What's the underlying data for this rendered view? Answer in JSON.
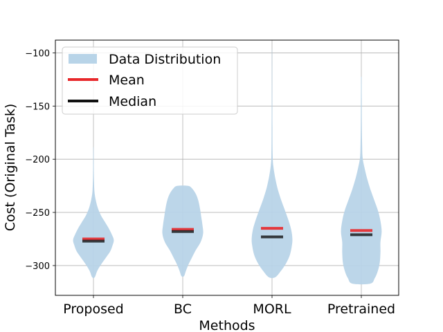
{
  "chart_data": {
    "type": "violin",
    "xlabel": "Methods",
    "ylabel": "Cost (Original Task)",
    "ylim": [
      -328,
      -88
    ],
    "yticks": [
      -100,
      -150,
      -200,
      -250,
      -300
    ],
    "grid": true,
    "legend_position": "top-left",
    "categories": [
      "Proposed",
      "BC",
      "MORL",
      "Pretrained"
    ],
    "legend": [
      {
        "label": "Data Distribution",
        "kind": "patch",
        "color": "#b8d4e8"
      },
      {
        "label": "Mean",
        "kind": "line",
        "color": "#e8282b"
      },
      {
        "label": "Median",
        "kind": "line",
        "color": "#111111"
      }
    ],
    "series": [
      {
        "name": "Proposed",
        "mean": -275,
        "median": -277,
        "min": -311,
        "max": -190,
        "profile": [
          [
            -311,
            0.02
          ],
          [
            -305,
            0.06
          ],
          [
            -299,
            0.12
          ],
          [
            -293,
            0.19
          ],
          [
            -287,
            0.26
          ],
          [
            -281,
            0.3
          ],
          [
            -276,
            0.32
          ],
          [
            -271,
            0.29
          ],
          [
            -265,
            0.24
          ],
          [
            -259,
            0.18
          ],
          [
            -253,
            0.12
          ],
          [
            -246,
            0.07
          ],
          [
            -238,
            0.035
          ],
          [
            -230,
            0.015
          ],
          [
            -218,
            0.008
          ],
          [
            -205,
            0.005
          ],
          [
            -190,
            0.003
          ]
        ]
      },
      {
        "name": "BC",
        "mean": -266,
        "median": -268,
        "min": -310,
        "max": -225,
        "profile": [
          [
            -310,
            0.02
          ],
          [
            -305,
            0.05
          ],
          [
            -299,
            0.09
          ],
          [
            -293,
            0.14
          ],
          [
            -286,
            0.2
          ],
          [
            -278,
            0.28
          ],
          [
            -270,
            0.32
          ],
          [
            -262,
            0.31
          ],
          [
            -254,
            0.29
          ],
          [
            -246,
            0.27
          ],
          [
            -238,
            0.24
          ],
          [
            -232,
            0.2
          ],
          [
            -227,
            0.14
          ],
          [
            -225,
            0.08
          ]
        ]
      },
      {
        "name": "MORL",
        "mean": -265,
        "median": -273,
        "min": -311,
        "max": -98,
        "profile": [
          [
            -311,
            0.05
          ],
          [
            -305,
            0.14
          ],
          [
            -298,
            0.22
          ],
          [
            -290,
            0.28
          ],
          [
            -282,
            0.31
          ],
          [
            -275,
            0.32
          ],
          [
            -266,
            0.3
          ],
          [
            -256,
            0.25
          ],
          [
            -246,
            0.19
          ],
          [
            -236,
            0.13
          ],
          [
            -226,
            0.08
          ],
          [
            -216,
            0.045
          ],
          [
            -206,
            0.02
          ],
          [
            -196,
            0.01
          ],
          [
            -170,
            0.006
          ],
          [
            -140,
            0.004
          ],
          [
            -115,
            0.003
          ],
          [
            -98,
            0.002
          ]
        ]
      },
      {
        "name": "Pretrained",
        "mean": -267,
        "median": -271,
        "min": -317,
        "max": -123,
        "profile": [
          [
            -317,
            0.14
          ],
          [
            -312,
            0.21
          ],
          [
            -305,
            0.26
          ],
          [
            -297,
            0.29
          ],
          [
            -288,
            0.3
          ],
          [
            -278,
            0.3
          ],
          [
            -268,
            0.32
          ],
          [
            -258,
            0.3
          ],
          [
            -248,
            0.26
          ],
          [
            -238,
            0.2
          ],
          [
            -228,
            0.14
          ],
          [
            -218,
            0.09
          ],
          [
            -208,
            0.05
          ],
          [
            -198,
            0.02
          ],
          [
            -185,
            0.012
          ],
          [
            -165,
            0.008
          ],
          [
            -145,
            0.006
          ],
          [
            -130,
            0.005
          ],
          [
            -123,
            0.004
          ]
        ]
      }
    ]
  }
}
